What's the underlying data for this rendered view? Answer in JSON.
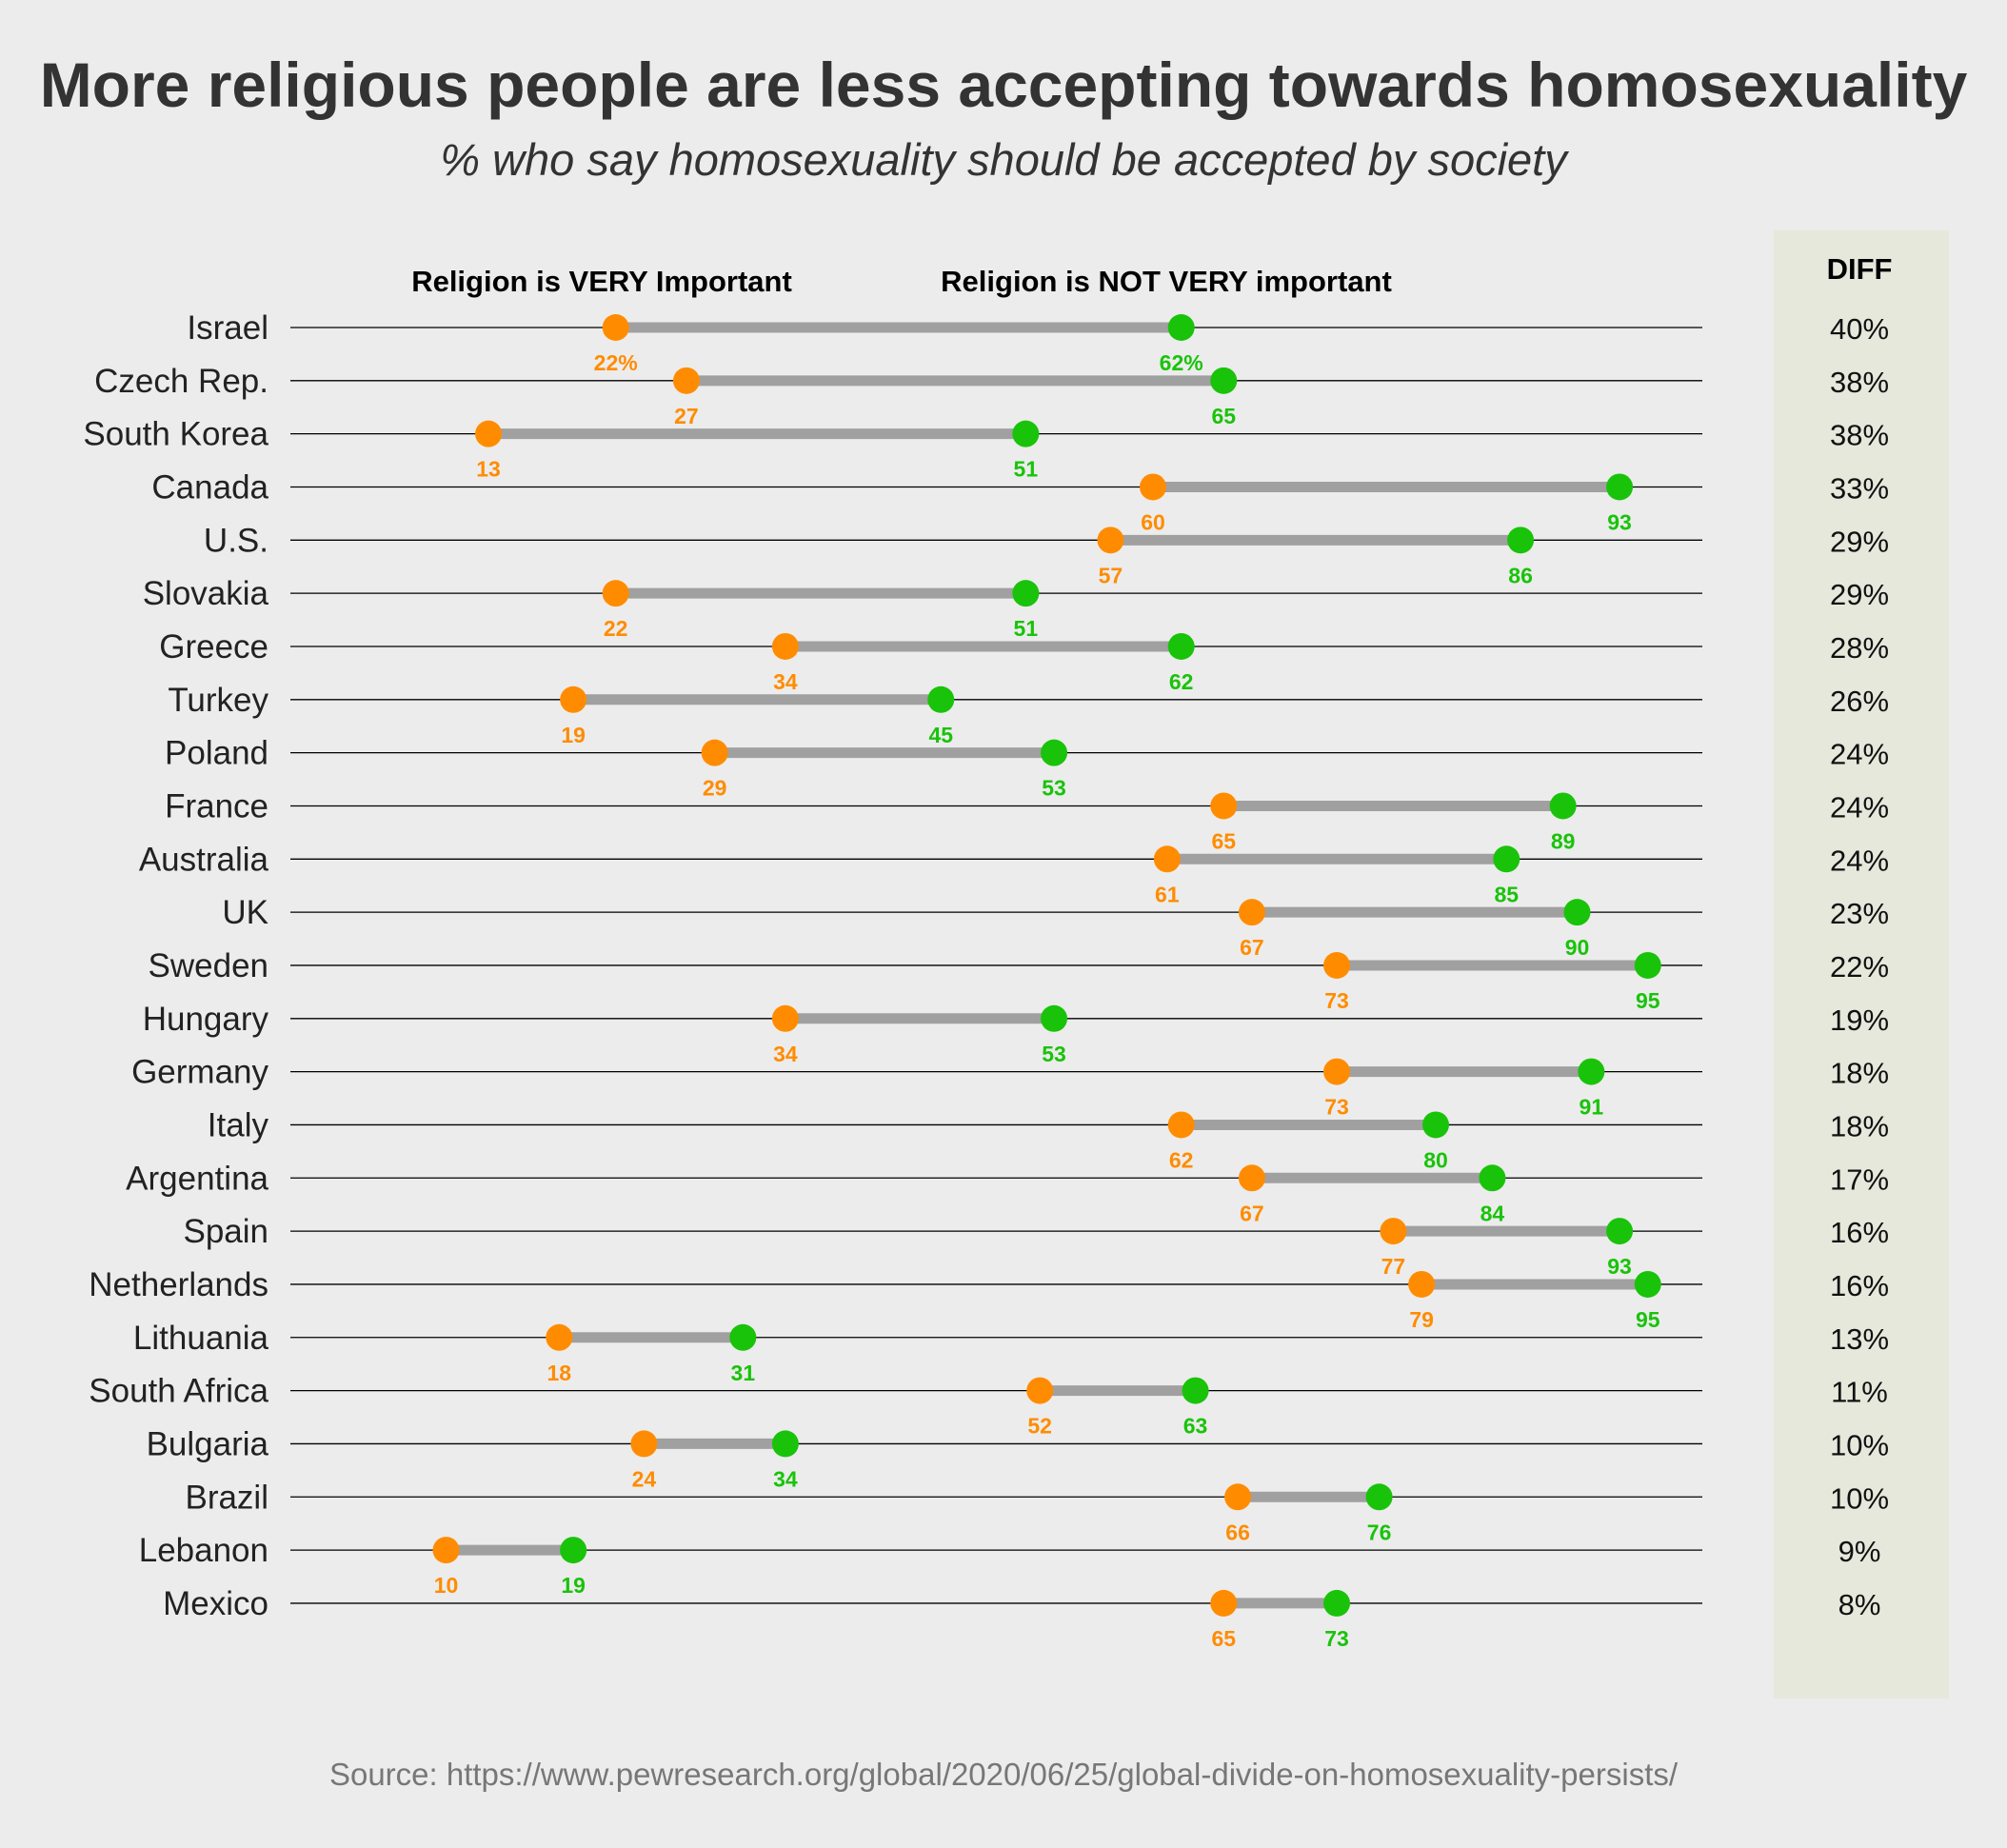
{
  "chart_data": {
    "type": "dumbbell",
    "title": "More religious people are less accepting towards homosexuality",
    "subtitle": "% who say homosexuality should be accepted by society",
    "legend": {
      "very_important": "Religion is VERY Important",
      "not_very_important": "Religion is NOT VERY important"
    },
    "diff_header": "DIFF",
    "source": "Source: https://www.pewresearch.org/global/2020/06/25/global-divide-on-homosexuality-persists/",
    "colors": {
      "very_important": "#ff8c00",
      "not_very_important": "#19c30a",
      "connector": "#a0a0a0",
      "diff_panel": "#e6e8dc",
      "row_line": "#000000"
    },
    "xlim": [
      0,
      100
    ],
    "rows": [
      {
        "country": "Israel",
        "very": 22,
        "not_very": 62,
        "diff": "40%",
        "very_label": "22%",
        "not_very_label": "62%"
      },
      {
        "country": "Czech Rep.",
        "very": 27,
        "not_very": 65,
        "diff": "38%",
        "very_label": "27",
        "not_very_label": "65"
      },
      {
        "country": "South Korea",
        "very": 13,
        "not_very": 51,
        "diff": "38%",
        "very_label": "13",
        "not_very_label": "51"
      },
      {
        "country": "Canada",
        "very": 60,
        "not_very": 93,
        "diff": "33%",
        "very_label": "60",
        "not_very_label": "93"
      },
      {
        "country": "U.S.",
        "very": 57,
        "not_very": 86,
        "diff": "29%",
        "very_label": "57",
        "not_very_label": "86"
      },
      {
        "country": "Slovakia",
        "very": 22,
        "not_very": 51,
        "diff": "29%",
        "very_label": "22",
        "not_very_label": "51"
      },
      {
        "country": "Greece",
        "very": 34,
        "not_very": 62,
        "diff": "28%",
        "very_label": "34",
        "not_very_label": "62"
      },
      {
        "country": "Turkey",
        "very": 19,
        "not_very": 45,
        "diff": "26%",
        "very_label": "19",
        "not_very_label": "45"
      },
      {
        "country": "Poland",
        "very": 29,
        "not_very": 53,
        "diff": "24%",
        "very_label": "29",
        "not_very_label": "53"
      },
      {
        "country": "France",
        "very": 65,
        "not_very": 89,
        "diff": "24%",
        "very_label": "65",
        "not_very_label": "89"
      },
      {
        "country": "Australia",
        "very": 61,
        "not_very": 85,
        "diff": "24%",
        "very_label": "61",
        "not_very_label": "85"
      },
      {
        "country": "UK",
        "very": 67,
        "not_very": 90,
        "diff": "23%",
        "very_label": "67",
        "not_very_label": "90"
      },
      {
        "country": "Sweden",
        "very": 73,
        "not_very": 95,
        "diff": "22%",
        "very_label": "73",
        "not_very_label": "95"
      },
      {
        "country": "Hungary",
        "very": 34,
        "not_very": 53,
        "diff": "19%",
        "very_label": "34",
        "not_very_label": "53"
      },
      {
        "country": "Germany",
        "very": 73,
        "not_very": 91,
        "diff": "18%",
        "very_label": "73",
        "not_very_label": "91"
      },
      {
        "country": "Italy",
        "very": 62,
        "not_very": 80,
        "diff": "18%",
        "very_label": "62",
        "not_very_label": "80"
      },
      {
        "country": "Argentina",
        "very": 67,
        "not_very": 84,
        "diff": "17%",
        "very_label": "67",
        "not_very_label": "84"
      },
      {
        "country": "Spain",
        "very": 77,
        "not_very": 93,
        "diff": "16%",
        "very_label": "77",
        "not_very_label": "93"
      },
      {
        "country": "Netherlands",
        "very": 79,
        "not_very": 95,
        "diff": "16%",
        "very_label": "79",
        "not_very_label": "95"
      },
      {
        "country": "Lithuania",
        "very": 18,
        "not_very": 31,
        "diff": "13%",
        "very_label": "18",
        "not_very_label": "31"
      },
      {
        "country": "South Africa",
        "very": 52,
        "not_very": 63,
        "diff": "11%",
        "very_label": "52",
        "not_very_label": "63"
      },
      {
        "country": "Bulgaria",
        "very": 24,
        "not_very": 34,
        "diff": "10%",
        "very_label": "24",
        "not_very_label": "34"
      },
      {
        "country": "Brazil",
        "very": 66,
        "not_very": 76,
        "diff": "10%",
        "very_label": "66",
        "not_very_label": "76"
      },
      {
        "country": "Lebanon",
        "very": 10,
        "not_very": 19,
        "diff": "9%",
        "very_label": "10",
        "not_very_label": "19"
      },
      {
        "country": "Mexico",
        "very": 65,
        "not_very": 73,
        "diff": "8%",
        "very_label": "65",
        "not_very_label": "73"
      }
    ]
  }
}
